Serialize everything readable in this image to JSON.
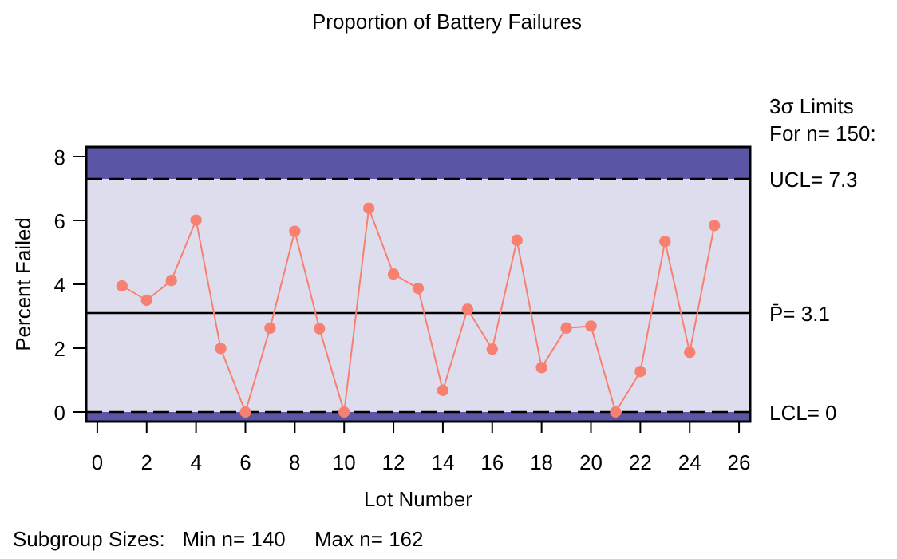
{
  "chart_data": {
    "type": "line",
    "title": "Proportion of Battery Failures",
    "xlabel": "Lot Number",
    "ylabel": "Percent Failed",
    "x": [
      1,
      2,
      3,
      4,
      5,
      6,
      7,
      8,
      9,
      10,
      11,
      12,
      13,
      14,
      15,
      16,
      17,
      18,
      19,
      20,
      21,
      22,
      23,
      24,
      25
    ],
    "series": [
      {
        "color": "#f88070",
        "values": [
          3.95,
          3.5,
          4.12,
          6.01,
          1.99,
          0,
          2.63,
          5.66,
          2.61,
          0,
          6.38,
          4.32,
          3.87,
          0.68,
          3.22,
          1.97,
          5.38,
          1.39,
          2.63,
          2.69,
          0,
          1.27,
          5.34,
          1.87,
          5.84
        ]
      }
    ],
    "marker": "circle",
    "line_style": "solid",
    "grid": false,
    "xlim": [
      -0.45,
      26.45
    ],
    "xticks": [
      0,
      2,
      4,
      6,
      8,
      10,
      12,
      14,
      16,
      18,
      20,
      22,
      24,
      26
    ],
    "ylim": [
      -0.3,
      8.3
    ],
    "yticks": [
      0,
      2,
      4,
      6,
      8
    ],
    "bands": [
      {
        "axis": "y",
        "from": 7.3,
        "to": 8.3,
        "color": "#5a55a5"
      },
      {
        "axis": "y",
        "from": -0.3,
        "to": 0,
        "color": "#5a55a5"
      }
    ],
    "ref_lines": [
      {
        "axis": "y",
        "value": 7.3,
        "label": "UCL= 7.3",
        "color": "#000000",
        "line_style": "dashed"
      },
      {
        "axis": "y",
        "value": 3.1,
        "label": "P̄= 3.1",
        "color": "#000000",
        "line_style": "solid"
      },
      {
        "axis": "y",
        "value": 0,
        "label": "LCL= 0",
        "color": "#000000",
        "line_style": "dashed"
      }
    ],
    "annotations": [
      "3σ Limits",
      "For n= 150:",
      "Subgroup Sizes:   Min n= 140     Max n= 162"
    ]
  }
}
